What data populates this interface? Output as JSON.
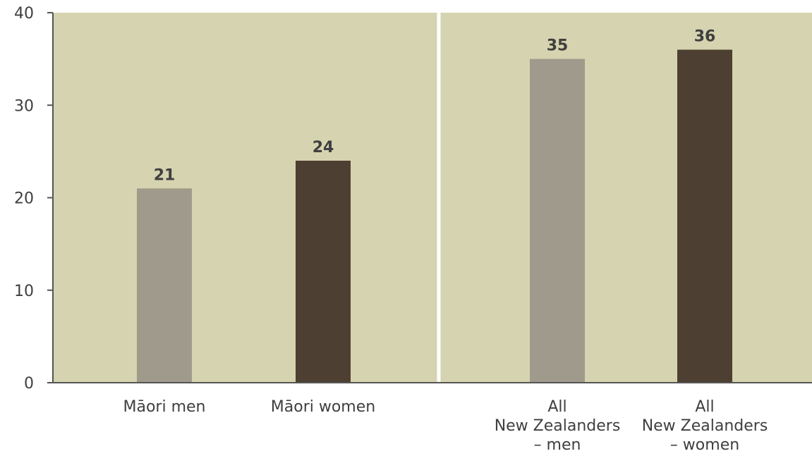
{
  "chart_data": {
    "type": "bar",
    "categories": [
      [
        "Māori men"
      ],
      [
        "Māori women"
      ],
      [
        "All",
        "New Zealanders",
        "– men"
      ],
      [
        "All",
        "New Zealanders",
        "– women"
      ]
    ],
    "values": [
      21,
      24,
      35,
      36
    ],
    "value_labels": [
      "21",
      "24",
      "35",
      "36"
    ],
    "bar_colors": [
      "#9f9a8c",
      "#4d3f31",
      "#9f9a8c",
      "#4d3f31"
    ],
    "groups": [
      [
        0,
        1
      ],
      [
        2,
        3
      ]
    ],
    "title": "",
    "xlabel": "",
    "ylabel": "",
    "ylim": [
      0,
      40
    ],
    "yticks": [
      0,
      10,
      20,
      30,
      40
    ],
    "grid": false,
    "legend": "none",
    "colors": {
      "plot_background": "#d6d4b0",
      "axis": "#555555",
      "divider": "#ffffff"
    }
  }
}
